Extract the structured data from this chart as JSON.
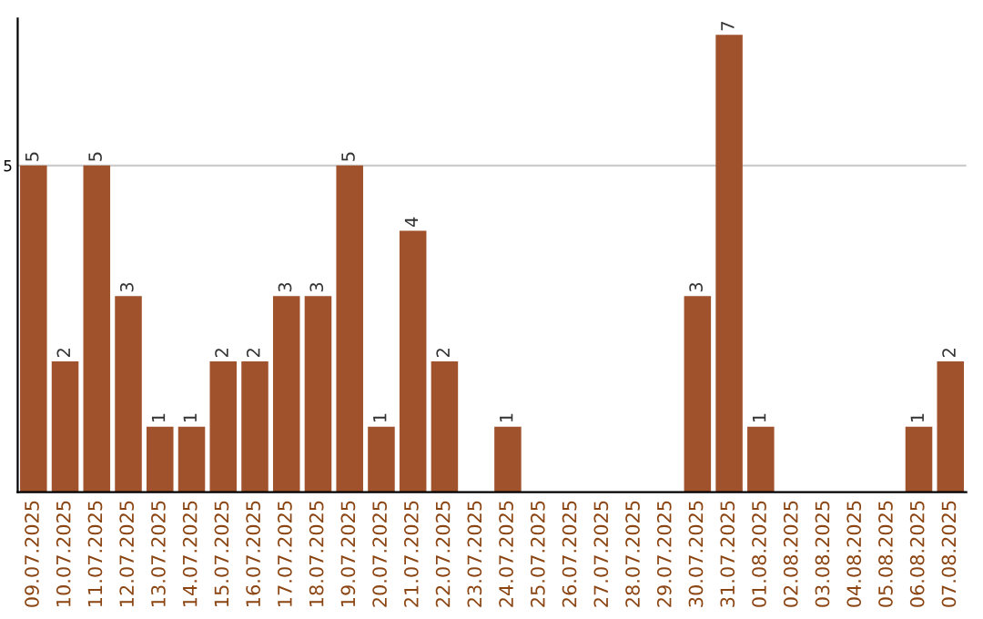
{
  "chart_data": {
    "type": "bar",
    "categories": [
      "09.07.2025",
      "10.07.2025",
      "11.07.2025",
      "12.07.2025",
      "13.07.2025",
      "14.07.2025",
      "15.07.2025",
      "16.07.2025",
      "17.07.2025",
      "18.07.2025",
      "19.07.2025",
      "20.07.2025",
      "21.07.2025",
      "22.07.2025",
      "23.07.2025",
      "24.07.2025",
      "25.07.2025",
      "26.07.2025",
      "27.07.2025",
      "28.07.2025",
      "29.07.2025",
      "30.07.2025",
      "31.07.2025",
      "01.08.2025",
      "02.08.2025",
      "03.08.2025",
      "04.08.2025",
      "05.08.2025",
      "06.08.2025",
      "07.08.2025"
    ],
    "values": [
      5,
      2,
      5,
      3,
      1,
      1,
      2,
      2,
      3,
      3,
      5,
      1,
      4,
      2,
      0,
      1,
      0,
      0,
      0,
      0,
      0,
      3,
      7,
      1,
      0,
      0,
      0,
      0,
      1,
      2
    ],
    "value_labels": [
      "5",
      "2",
      "5",
      "3",
      "1",
      "1",
      "2",
      "2",
      "3",
      "3",
      "5",
      "1",
      "4",
      "2",
      null,
      "1",
      null,
      null,
      null,
      null,
      null,
      "3",
      "7",
      "1",
      null,
      null,
      null,
      null,
      "1",
      "2"
    ],
    "color": "#a0522d",
    "ylim": [
      0,
      7.25
    ],
    "yticks": [
      5
    ],
    "grid": "y"
  }
}
